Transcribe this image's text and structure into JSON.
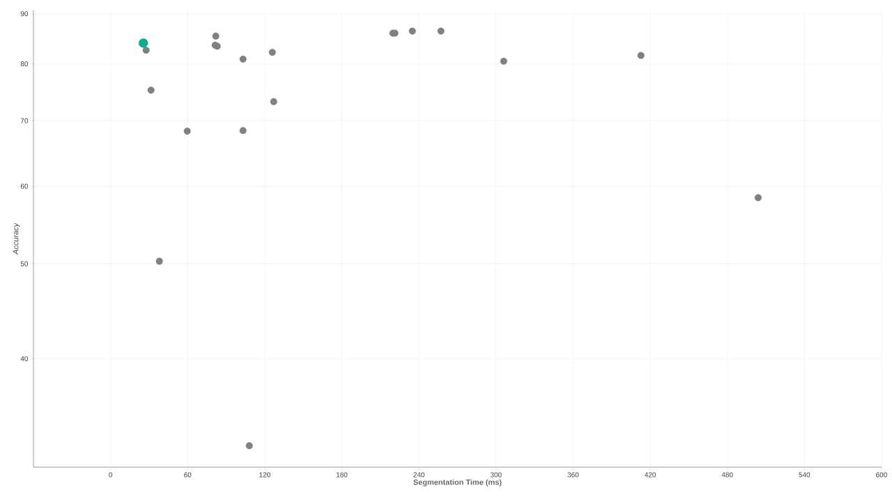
{
  "chart_data": {
    "type": "scatter",
    "xlabel": "Segmentation Time (ms)",
    "ylabel": "Accuracy",
    "log": "y",
    "grid": true,
    "marker": "circle",
    "xlim": [
      -60,
      600
    ],
    "ylim": [
      31,
      90.7
    ],
    "xticks": [
      0,
      60,
      120,
      180,
      240,
      300,
      360,
      420,
      480,
      540,
      600
    ],
    "yticks": [
      40,
      50,
      60,
      70,
      80,
      90
    ],
    "series": [
      {
        "color": "#808080",
        "x": [
          27.7,
          31.5,
          38,
          59.7,
          81.9,
          81.4,
          83,
          103.1,
          103.1,
          108,
          125.9,
          127,
          219.7,
          221.3,
          234.9,
          257.1,
          306,
          412.8,
          504
        ],
        "values": [
          82.6,
          75.2,
          50.3,
          68.3,
          85.4,
          83.6,
          83.4,
          80.9,
          68.4,
          32.6,
          82.2,
          73.2,
          86.0,
          86.0,
          86.4,
          86.4,
          80.5,
          81.6,
          58.4
        ]
      },
      {
        "color": "#0bab8b",
        "x": [
          25.5
        ],
        "values": [
          84.0
        ]
      }
    ]
  }
}
